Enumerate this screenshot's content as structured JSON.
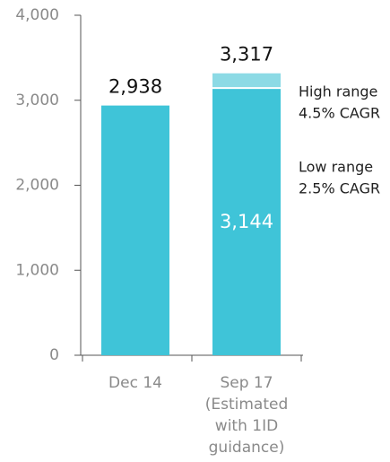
{
  "chart_data": {
    "type": "bar",
    "categories": [
      [
        "Dec 14"
      ],
      [
        "Sep 17",
        "(Estimated",
        "with 1ID",
        "guidance)"
      ]
    ],
    "series": [
      {
        "color": "#8cdae5",
        "values": [
          null,
          3317
        ],
        "value_labels": [
          null,
          "3,317"
        ]
      },
      {
        "color": "#3fc4d8",
        "values": [
          2938,
          3144
        ],
        "value_labels": [
          "2,938",
          "3,144"
        ]
      }
    ],
    "annotations": [
      [
        "High range",
        "4.5% CAGR"
      ],
      [
        "Low range",
        "2.5% CAGR"
      ]
    ],
    "ylim": [
      0,
      4000
    ],
    "yticks": [
      0,
      {
        "value": 1000,
        "label": "1,000"
      },
      {
        "value": 2000,
        "label": "2,000"
      },
      {
        "value": 3000,
        "label": "3,000"
      },
      {
        "value": 4000,
        "label": "4,000"
      }
    ]
  }
}
